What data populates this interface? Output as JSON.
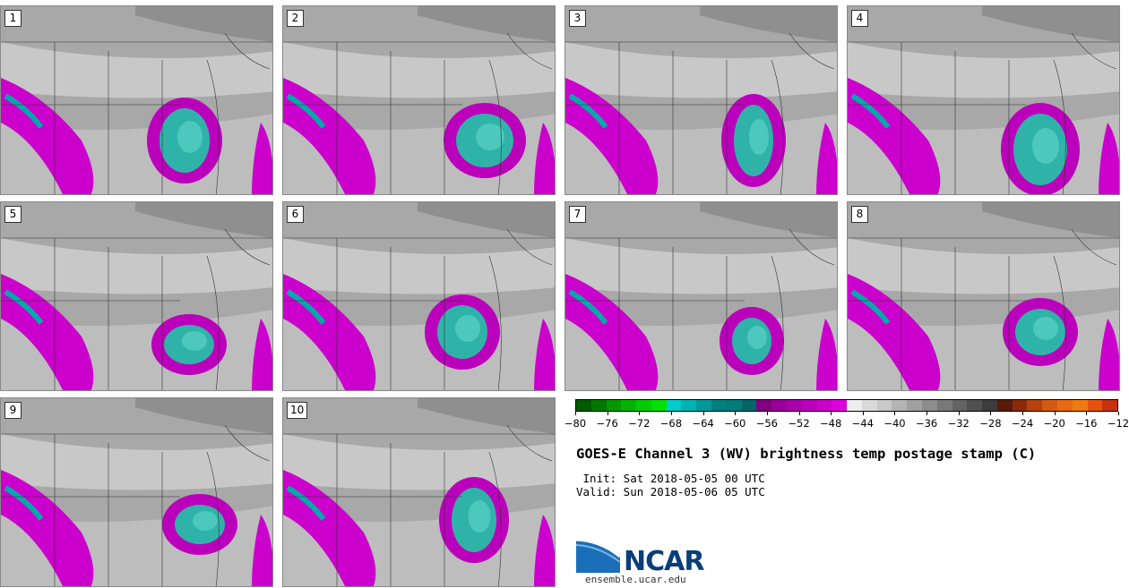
{
  "panels": [
    {
      "label": "1"
    },
    {
      "label": "2"
    },
    {
      "label": "3"
    },
    {
      "label": "4"
    },
    {
      "label": "5"
    },
    {
      "label": "6"
    },
    {
      "label": "7"
    },
    {
      "label": "8"
    },
    {
      "label": "9"
    },
    {
      "label": "10"
    }
  ],
  "colorbar": {
    "colors": [
      "#005a00",
      "#007800",
      "#009900",
      "#00b300",
      "#00cc00",
      "#00e000",
      "#00cccc",
      "#00b3b3",
      "#009999",
      "#008080",
      "#007a7a",
      "#006666",
      "#800080",
      "#990099",
      "#aa00aa",
      "#bb00bb",
      "#cc00cc",
      "#dd00dd",
      "#eeeeee",
      "#d9d9d9",
      "#c8c8c8",
      "#b4b4b4",
      "#a0a0a0",
      "#8c8c8c",
      "#787878",
      "#646464",
      "#505050",
      "#3c3c3c",
      "#5a1a0a",
      "#8b2a0a",
      "#b8400f",
      "#d45a12",
      "#e86a10",
      "#f07a12",
      "#e85010",
      "#c83010"
    ],
    "ticks": [
      "−80",
      "−76",
      "−72",
      "−68",
      "−64",
      "−60",
      "−56",
      "−52",
      "−48",
      "−44",
      "−40",
      "−36",
      "−32",
      "−28",
      "−24",
      "−20",
      "−16",
      "−12"
    ]
  },
  "title": "GOES-E Channel 3 (WV) brightness temp postage stamp (C)",
  "init_line": " Init: Sat 2018-05-05 00 UTC",
  "valid_line": "Valid: Sun 2018-05-06 05 UTC",
  "logo": {
    "text": "NCAR",
    "url": "ensemble.ucar.edu"
  }
}
